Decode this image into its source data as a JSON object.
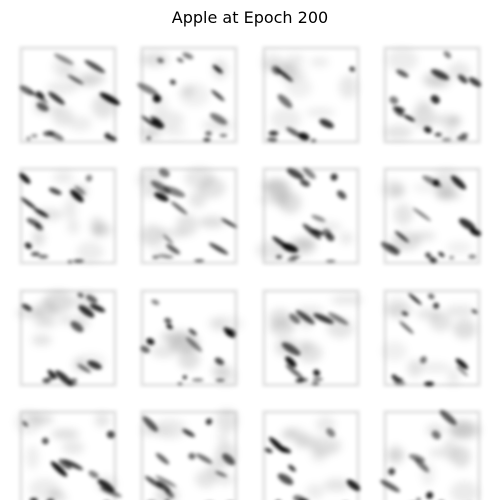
{
  "figure": {
    "title": "Apple at Epoch 200",
    "rows": 4,
    "cols": 4,
    "colormap": "grayscale-inverted",
    "background_color": "#ffffff",
    "ink_color": "#000000"
  }
}
